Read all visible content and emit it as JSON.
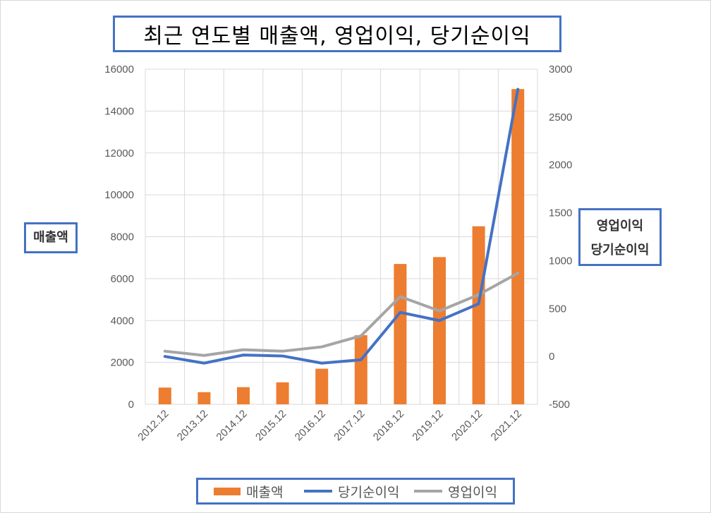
{
  "chart_data": {
    "type": "bar",
    "title": "최근 연도별 매출액, 영업이익, 당기순이익",
    "categories": [
      "2012.12",
      "2013.12",
      "2014.12",
      "2015.12",
      "2016.12",
      "2017.12",
      "2018.12",
      "2019.12",
      "2020.12",
      "2021.12"
    ],
    "ylabel_left": "매출액",
    "ylabel_right_line1": "영업이익",
    "ylabel_right_line2": "당기순이익",
    "ylim_left": [
      0,
      16000
    ],
    "yticks_left": [
      "0",
      "2000",
      "4000",
      "6000",
      "8000",
      "10000",
      "12000",
      "14000",
      "16000"
    ],
    "ylim_right": [
      -500,
      3000
    ],
    "yticks_right": [
      "-500",
      "0",
      "500",
      "1000",
      "1500",
      "2000",
      "2500",
      "3000"
    ],
    "grid": true,
    "legend_position": "bottom",
    "series": [
      {
        "name": "매출액",
        "type": "bar",
        "axis": "left",
        "color": "#ed7d31",
        "values": [
          800,
          580,
          820,
          1050,
          1700,
          3300,
          6700,
          7030,
          8500,
          15050
        ]
      },
      {
        "name": "당기순이익",
        "type": "line",
        "axis": "right",
        "color": "#4472c4",
        "values": [
          0,
          -70,
          15,
          5,
          -70,
          -35,
          460,
          375,
          550,
          2790
        ]
      },
      {
        "name": "영업이익",
        "type": "line",
        "axis": "right",
        "color": "#a5a5a5",
        "values": [
          55,
          10,
          70,
          55,
          100,
          215,
          625,
          475,
          645,
          870
        ]
      }
    ]
  }
}
